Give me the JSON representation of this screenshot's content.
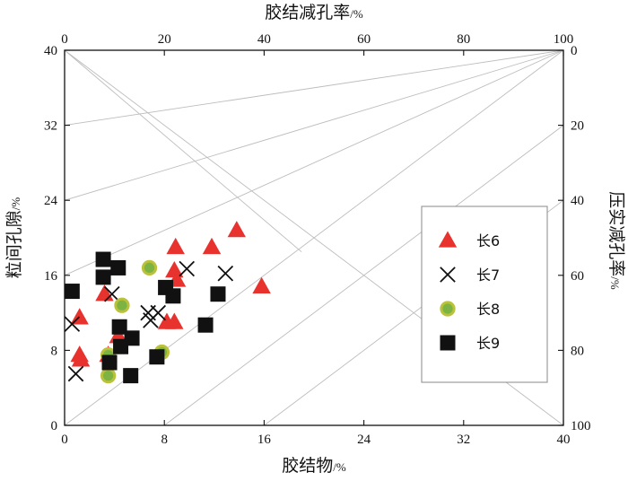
{
  "chart_data": {
    "type": "scatter",
    "xlabel": {
      "main": "胶结物",
      "unit": "/%"
    },
    "ylabel": {
      "main": "粒间孔隙",
      "unit": "/%"
    },
    "top_axis_label": {
      "main": "胶结减孔率",
      "unit": "/%"
    },
    "right_axis_label": {
      "main": "压实减孔率",
      "unit": "/%"
    },
    "xlim": [
      0,
      40
    ],
    "ylim": [
      0,
      40
    ],
    "x_ticks": [
      0,
      8,
      16,
      24,
      32,
      40
    ],
    "y_ticks": [
      0,
      8,
      16,
      24,
      32,
      40
    ],
    "top_ticks": [
      0,
      20,
      40,
      60,
      80,
      100
    ],
    "right_ticks": [
      0,
      20,
      40,
      60,
      80,
      100
    ],
    "legend_position": "right",
    "series": [
      {
        "name": "长6",
        "marker": "triangle",
        "color": "#e8322e",
        "points": [
          [
            1.2,
            11.5
          ],
          [
            1.2,
            7.5
          ],
          [
            1.3,
            7.0
          ],
          [
            3.2,
            14.0
          ],
          [
            3.5,
            7.5
          ],
          [
            4.3,
            9.5
          ],
          [
            8.2,
            11.0
          ],
          [
            8.8,
            11.0
          ],
          [
            8.8,
            16.5
          ],
          [
            8.9,
            19.0
          ],
          [
            9.0,
            15.5
          ],
          [
            11.8,
            19.0
          ],
          [
            13.8,
            20.8
          ],
          [
            15.8,
            14.8
          ]
        ]
      },
      {
        "name": "长7",
        "marker": "cross",
        "color": "#111111",
        "points": [
          [
            0.6,
            10.8
          ],
          [
            0.9,
            5.5
          ],
          [
            3.8,
            14.0
          ],
          [
            6.7,
            12.0
          ],
          [
            6.9,
            11.2
          ],
          [
            7.5,
            12.0
          ],
          [
            9.8,
            16.7
          ],
          [
            12.9,
            16.2
          ]
        ]
      },
      {
        "name": "长8",
        "marker": "circle",
        "color": "#7db342",
        "stroke": "#b9c23a",
        "points": [
          [
            3.5,
            5.3
          ],
          [
            3.5,
            7.5
          ],
          [
            4.6,
            12.8
          ],
          [
            6.8,
            16.8
          ],
          [
            7.8,
            7.8
          ]
        ]
      },
      {
        "name": "长9",
        "marker": "square",
        "color": "#111111",
        "points": [
          [
            0.6,
            14.3
          ],
          [
            3.1,
            17.7
          ],
          [
            3.1,
            15.8
          ],
          [
            3.6,
            6.7
          ],
          [
            4.3,
            16.8
          ],
          [
            4.4,
            10.5
          ],
          [
            4.5,
            8.4
          ],
          [
            5.3,
            5.3
          ],
          [
            5.4,
            9.3
          ],
          [
            7.4,
            7.3
          ],
          [
            8.1,
            14.7
          ],
          [
            8.7,
            13.8
          ],
          [
            11.3,
            10.7
          ],
          [
            12.3,
            14.0
          ]
        ]
      }
    ]
  }
}
